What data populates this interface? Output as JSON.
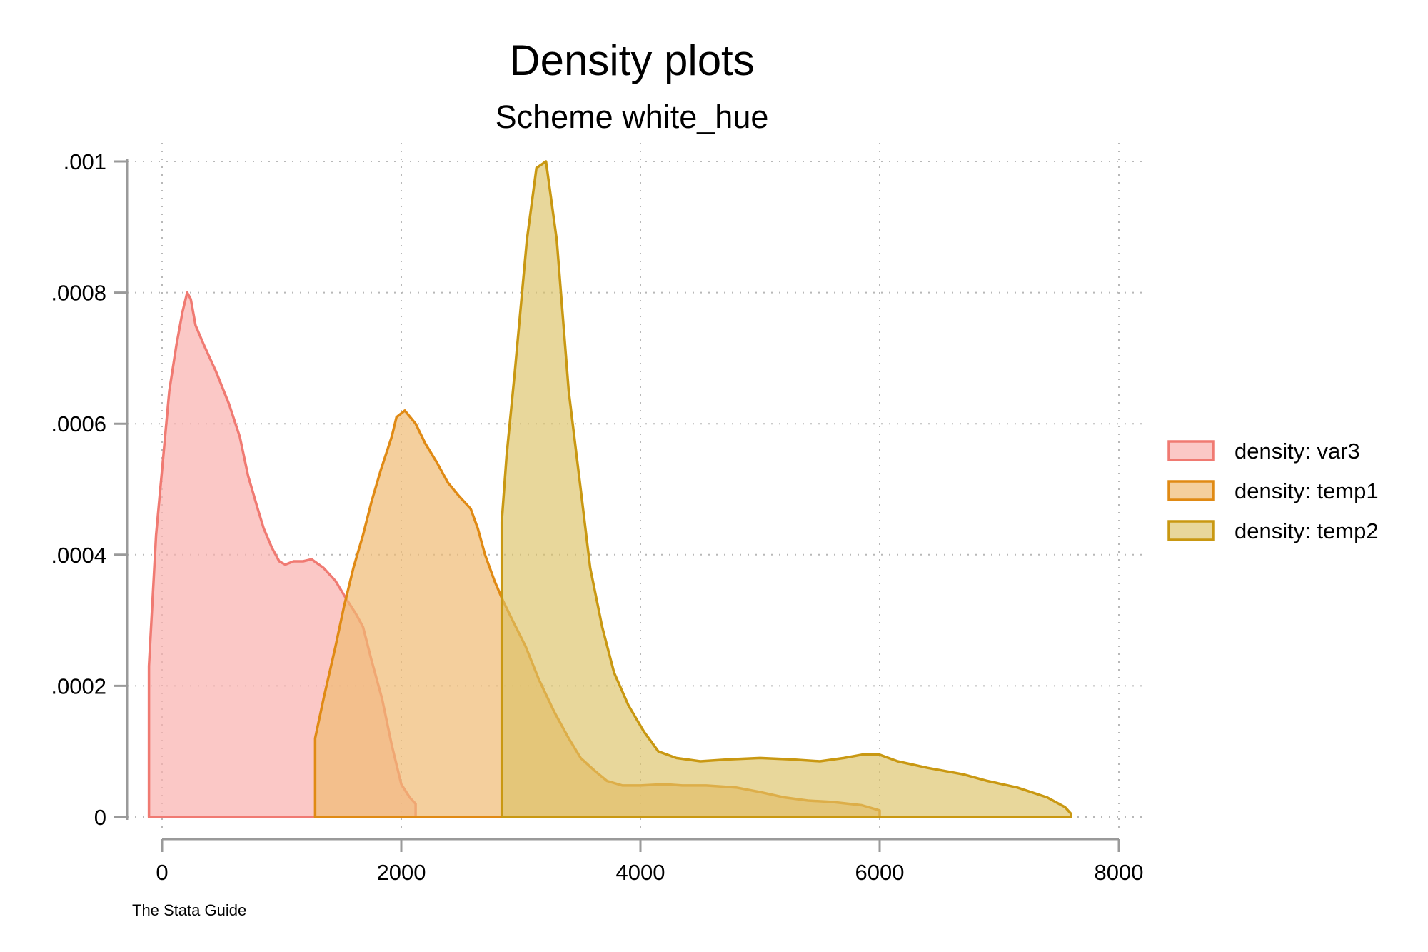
{
  "chart_data": {
    "type": "area",
    "title": "Density plots",
    "subtitle": "Scheme white_hue",
    "note": "The Stata Guide",
    "xlabel": "",
    "ylabel": "",
    "xlim": [
      0,
      8000
    ],
    "ylim": [
      0,
      0.001
    ],
    "x_ticks": [
      {
        "value": 0,
        "label": "0"
      },
      {
        "value": 2000,
        "label": "2000"
      },
      {
        "value": 4000,
        "label": "4000"
      },
      {
        "value": 6000,
        "label": "6000"
      },
      {
        "value": 8000,
        "label": "8000"
      }
    ],
    "y_ticks": [
      {
        "value": 0,
        "label": "0"
      },
      {
        "value": 0.0002,
        "label": ".0002"
      },
      {
        "value": 0.0004,
        "label": ".0004"
      },
      {
        "value": 0.0006,
        "label": ".0006"
      },
      {
        "value": 0.0008,
        "label": ".0008"
      },
      {
        "value": 0.001,
        "label": ".001"
      }
    ],
    "grid": true,
    "legend_position": "right",
    "series": [
      {
        "name": "density: var3",
        "line_color": "#f07a72",
        "fill_color": "#f9b1ae",
        "fill_opacity": 0.7,
        "points": [
          [
            -110,
            0
          ],
          [
            -110,
            0.00023
          ],
          [
            -50,
            0.00043
          ],
          [
            0,
            0.00053
          ],
          [
            60,
            0.00065
          ],
          [
            120,
            0.00072
          ],
          [
            170,
            0.00077
          ],
          [
            210,
            0.0008
          ],
          [
            240,
            0.00079
          ],
          [
            280,
            0.00075
          ],
          [
            350,
            0.00072
          ],
          [
            450,
            0.00068
          ],
          [
            560,
            0.00063
          ],
          [
            650,
            0.00058
          ],
          [
            720,
            0.00052
          ],
          [
            800,
            0.00047
          ],
          [
            850,
            0.00044
          ],
          [
            920,
            0.00041
          ],
          [
            980,
            0.00039
          ],
          [
            1030,
            0.000385
          ],
          [
            1100,
            0.00039
          ],
          [
            1180,
            0.00039
          ],
          [
            1250,
            0.000393
          ],
          [
            1350,
            0.00038
          ],
          [
            1450,
            0.00036
          ],
          [
            1550,
            0.00033
          ],
          [
            1620,
            0.00031
          ],
          [
            1680,
            0.00029
          ],
          [
            1750,
            0.00024
          ],
          [
            1840,
            0.00018
          ],
          [
            1920,
            0.00011
          ],
          [
            2000,
            5e-05
          ],
          [
            2070,
            3e-05
          ],
          [
            2120,
            2e-05
          ],
          [
            2120,
            0
          ]
        ]
      },
      {
        "name": "density: temp1",
        "line_color": "#e08a14",
        "fill_color": "#efbb73",
        "fill_opacity": 0.7,
        "points": [
          [
            1280,
            0
          ],
          [
            1280,
            0.00012
          ],
          [
            1350,
            0.00018
          ],
          [
            1450,
            0.00026
          ],
          [
            1520,
            0.00032
          ],
          [
            1600,
            0.00038
          ],
          [
            1680,
            0.00043
          ],
          [
            1750,
            0.00048
          ],
          [
            1830,
            0.00053
          ],
          [
            1920,
            0.00058
          ],
          [
            1960,
            0.00061
          ],
          [
            2030,
            0.00062
          ],
          [
            2120,
            0.0006
          ],
          [
            2200,
            0.00057
          ],
          [
            2300,
            0.00054
          ],
          [
            2390,
            0.00051
          ],
          [
            2480,
            0.00049
          ],
          [
            2580,
            0.00047
          ],
          [
            2640,
            0.00044
          ],
          [
            2700,
            0.0004
          ],
          [
            2780,
            0.00036
          ],
          [
            2850,
            0.00033
          ],
          [
            2930,
            0.0003
          ],
          [
            3040,
            0.00026
          ],
          [
            3150,
            0.00021
          ],
          [
            3280,
            0.00016
          ],
          [
            3400,
            0.00012
          ],
          [
            3500,
            9e-05
          ],
          [
            3620,
            7e-05
          ],
          [
            3720,
            5.5e-05
          ],
          [
            3850,
            4.8e-05
          ],
          [
            4000,
            4.8e-05
          ],
          [
            4200,
            5e-05
          ],
          [
            4350,
            4.8e-05
          ],
          [
            4550,
            4.8e-05
          ],
          [
            4800,
            4.5e-05
          ],
          [
            5000,
            3.8e-05
          ],
          [
            5200,
            3e-05
          ],
          [
            5400,
            2.5e-05
          ],
          [
            5600,
            2.3e-05
          ],
          [
            5850,
            1.8e-05
          ],
          [
            6000,
            1e-05
          ],
          [
            6000,
            0
          ]
        ]
      },
      {
        "name": "density: temp2",
        "line_color": "#c99812",
        "fill_color": "#dcc265",
        "fill_opacity": 0.65,
        "points": [
          [
            2840,
            0
          ],
          [
            2840,
            0.00045
          ],
          [
            2880,
            0.00055
          ],
          [
            2950,
            0.00068
          ],
          [
            3050,
            0.00088
          ],
          [
            3130,
            0.00099
          ],
          [
            3210,
            0.001
          ],
          [
            3300,
            0.00088
          ],
          [
            3400,
            0.00065
          ],
          [
            3500,
            0.0005
          ],
          [
            3580,
            0.00038
          ],
          [
            3680,
            0.00029
          ],
          [
            3780,
            0.00022
          ],
          [
            3900,
            0.00017
          ],
          [
            4030,
            0.00013
          ],
          [
            4150,
            0.0001
          ],
          [
            4300,
            9e-05
          ],
          [
            4500,
            8.5e-05
          ],
          [
            4750,
            8.8e-05
          ],
          [
            5000,
            9e-05
          ],
          [
            5250,
            8.8e-05
          ],
          [
            5500,
            8.5e-05
          ],
          [
            5700,
            9e-05
          ],
          [
            5850,
            9.5e-05
          ],
          [
            6000,
            9.5e-05
          ],
          [
            6150,
            8.5e-05
          ],
          [
            6400,
            7.5e-05
          ],
          [
            6700,
            6.5e-05
          ],
          [
            6900,
            5.5e-05
          ],
          [
            7150,
            4.5e-05
          ],
          [
            7400,
            3e-05
          ],
          [
            7550,
            1.5e-05
          ],
          [
            7600,
            5e-06
          ],
          [
            7600,
            0
          ]
        ]
      }
    ]
  }
}
